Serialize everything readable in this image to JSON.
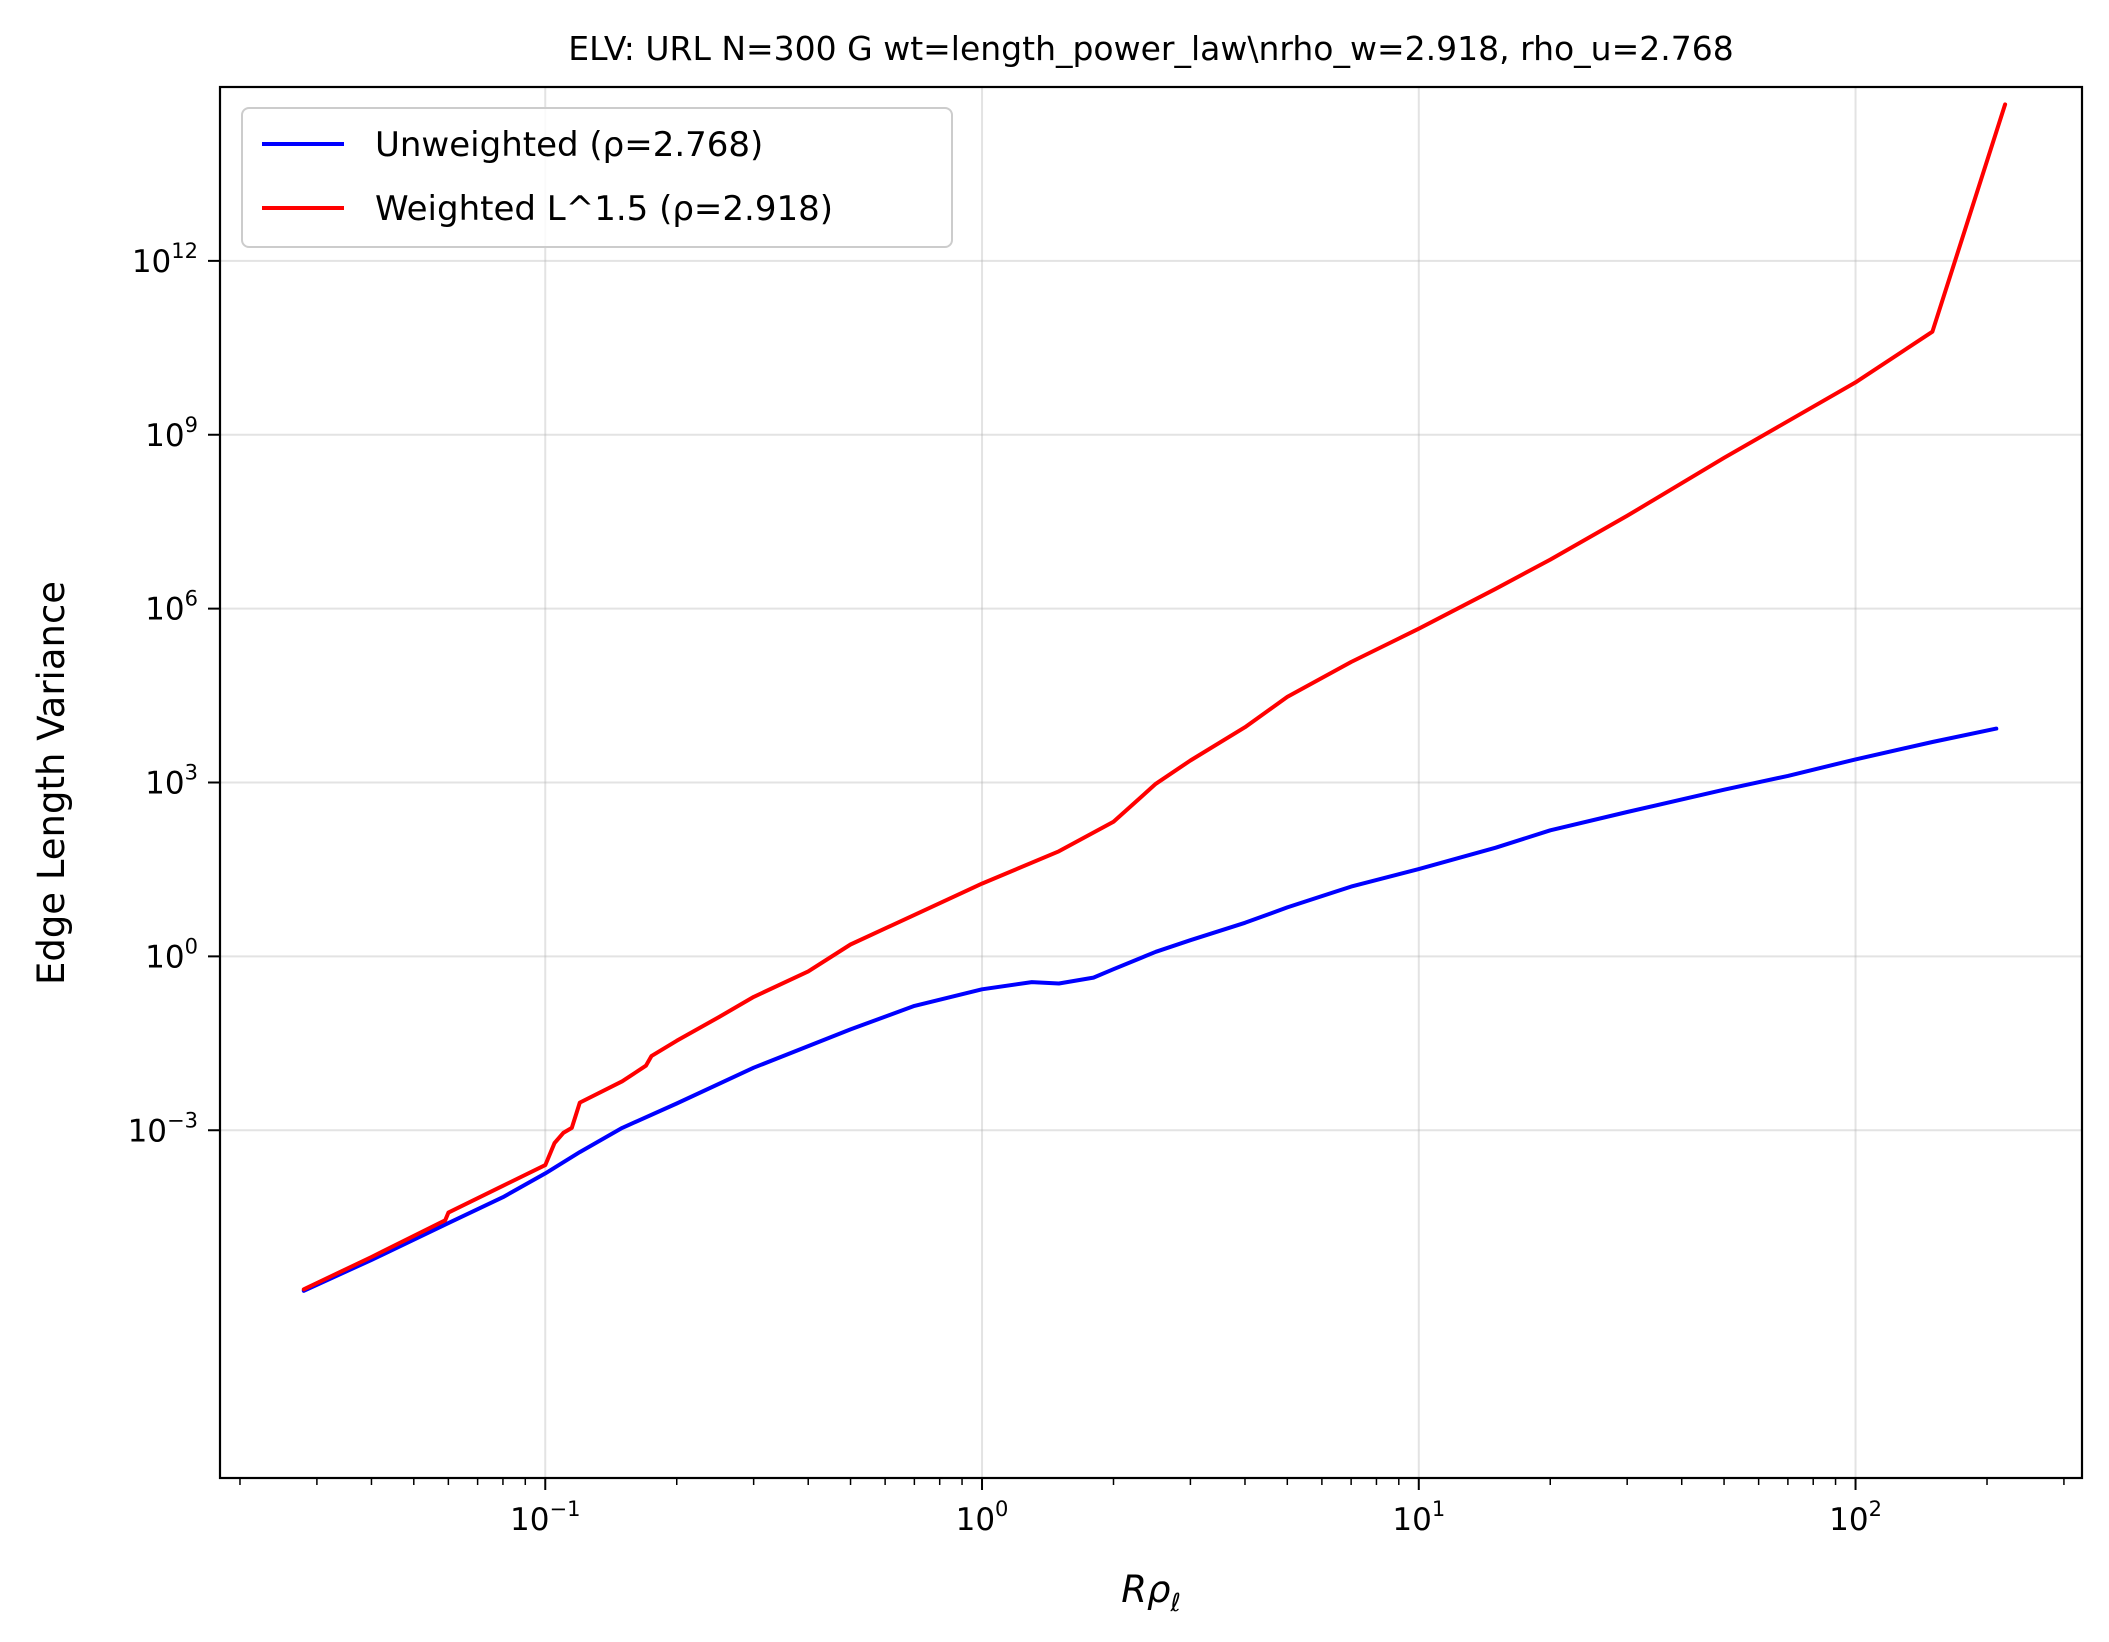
{
  "chart_data": {
    "type": "line",
    "title": "ELV: URL N=300 G wt=length_power_law\\nrho_w=2.918, rho_u=2.768",
    "xlabel_base": "R",
    "xlabel_rho": "ρ",
    "xlabel_sub": "ℓ",
    "ylabel": "Edge Length Variance",
    "xscale": "log",
    "yscale": "log",
    "xlim": [
      0.018,
      330
    ],
    "ylim": [
      1e-09,
      1000000000000000.0
    ],
    "grid": true,
    "legend_position": "top-left",
    "x_ticks": [
      {
        "value": 0.1,
        "base": "10",
        "exp": "−1"
      },
      {
        "value": 1,
        "base": "10",
        "exp": "0"
      },
      {
        "value": 10,
        "base": "10",
        "exp": "1"
      },
      {
        "value": 100,
        "base": "10",
        "exp": "2"
      }
    ],
    "y_ticks": [
      {
        "value": 0.001,
        "base": "10",
        "exp": "−3"
      },
      {
        "value": 1,
        "base": "10",
        "exp": "0"
      },
      {
        "value": 1000,
        "base": "10",
        "exp": "3"
      },
      {
        "value": 1000000,
        "base": "10",
        "exp": "6"
      },
      {
        "value": 1000000000,
        "base": "10",
        "exp": "9"
      },
      {
        "value": 1000000000000,
        "base": "10",
        "exp": "12"
      }
    ],
    "series": [
      {
        "name": "Unweighted (ρ=2.768)",
        "color": "#0000ff",
        "x": [
          0.028,
          0.04,
          0.06,
          0.08,
          0.1,
          0.12,
          0.15,
          0.2,
          0.3,
          0.5,
          0.7,
          1.0,
          1.3,
          1.5,
          1.8,
          2.0,
          2.5,
          3.0,
          4.0,
          5.0,
          7.0,
          10,
          15,
          20,
          30,
          50,
          70,
          100,
          150,
          210
        ],
        "y": [
          1.7e-06,
          5.8e-06,
          2.5e-05,
          7e-05,
          0.00018,
          0.00042,
          0.0011,
          0.0029,
          0.012,
          0.055,
          0.14,
          0.27,
          0.36,
          0.34,
          0.43,
          0.6,
          1.2,
          1.9,
          3.8,
          7,
          16,
          32,
          75,
          150,
          310,
          750,
          1300,
          2500,
          5000,
          8500
        ]
      },
      {
        "name": "Weighted L^1.5 (ρ=2.918)",
        "color": "#ff0000",
        "x": [
          0.028,
          0.04,
          0.059,
          0.06,
          0.08,
          0.1,
          0.105,
          0.11,
          0.115,
          0.12,
          0.15,
          0.17,
          0.175,
          0.2,
          0.25,
          0.3,
          0.4,
          0.5,
          0.7,
          1.0,
          1.5,
          2.0,
          2.5,
          3.0,
          4.0,
          5.0,
          7.0,
          10,
          15,
          20,
          30,
          50,
          100,
          150,
          220
        ],
        "y": [
          1.8e-06,
          6.5e-06,
          2.8e-05,
          3.8e-05,
          0.00011,
          0.00025,
          0.0006,
          0.0009,
          0.0011,
          0.003,
          0.007,
          0.013,
          0.019,
          0.035,
          0.09,
          0.2,
          0.55,
          1.6,
          5.2,
          18,
          65,
          210,
          950,
          2400,
          9000,
          30000,
          120000,
          450000,
          2200000,
          7000000,
          40000000,
          400000000,
          8000000000,
          60000000000,
          500000000000000
        ]
      }
    ]
  }
}
